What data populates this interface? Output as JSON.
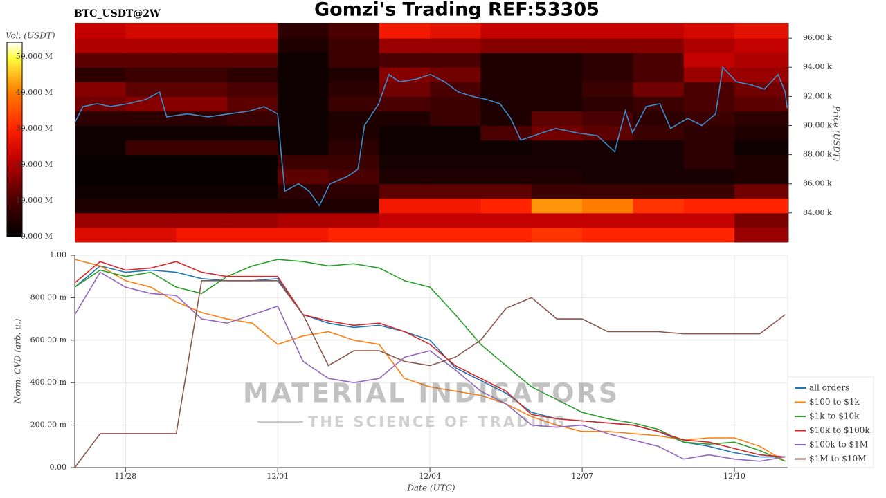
{
  "title": "Gomzi's Trading REF:53305",
  "watermark": {
    "title": "MATERIAL INDICATORS",
    "subtitle": "THE SCIENCE OF TRADING"
  },
  "chart_data": [
    {
      "type": "heatmap",
      "subtitle": "BTC_USDT@2W",
      "ylabel": "Price (USDT)",
      "x_bins": [
        0,
        1,
        2,
        3,
        4,
        5,
        6,
        7,
        8,
        9,
        10,
        11,
        12,
        13,
        14.05
      ],
      "y_bins": [
        82,
        83,
        84,
        85,
        86,
        87,
        88,
        89,
        90,
        91,
        92,
        93,
        94,
        95,
        96,
        97.05
      ],
      "values": [
        [
          25,
          25,
          28,
          28,
          28,
          30,
          30,
          30,
          30,
          32,
          30,
          30,
          30,
          18
        ],
        [
          18,
          18,
          18,
          18,
          20,
          20,
          22,
          22,
          22,
          22,
          22,
          22,
          22,
          15
        ],
        [
          4,
          4,
          4,
          4,
          4,
          4,
          28,
          28,
          30,
          42,
          40,
          32,
          30,
          30
        ],
        [
          2,
          2,
          2,
          2,
          6,
          6,
          12,
          12,
          12,
          8,
          8,
          8,
          8,
          14
        ],
        [
          1,
          1,
          1,
          1,
          12,
          10,
          4,
          4,
          4,
          4,
          3,
          3,
          3,
          4
        ],
        [
          1,
          1,
          1,
          1,
          8,
          8,
          3,
          3,
          3,
          3,
          3,
          3,
          6,
          4
        ],
        [
          2,
          8,
          8,
          8,
          2,
          6,
          2,
          2,
          2,
          3,
          3,
          3,
          6,
          2
        ],
        [
          2,
          2,
          2,
          2,
          2,
          4,
          2,
          2,
          10,
          14,
          12,
          8,
          6,
          4
        ],
        [
          6,
          6,
          6,
          8,
          2,
          4,
          4,
          8,
          4,
          12,
          10,
          6,
          8,
          6
        ],
        [
          14,
          16,
          16,
          12,
          2,
          8,
          10,
          8,
          4,
          4,
          6,
          8,
          10,
          12
        ],
        [
          16,
          12,
          12,
          10,
          2,
          6,
          14,
          10,
          4,
          4,
          8,
          14,
          10,
          14
        ],
        [
          6,
          8,
          8,
          6,
          2,
          4,
          16,
          14,
          4,
          4,
          6,
          10,
          18,
          18
        ],
        [
          12,
          12,
          12,
          12,
          2,
          8,
          10,
          10,
          4,
          4,
          6,
          10,
          22,
          20
        ],
        [
          20,
          20,
          20,
          20,
          4,
          8,
          18,
          18,
          16,
          16,
          16,
          16,
          20,
          22
        ],
        [
          22,
          24,
          24,
          24,
          6,
          10,
          28,
          26,
          22,
          22,
          22,
          22,
          24,
          26
        ]
      ],
      "line": {
        "color": "#3a8fd0",
        "x": [
          0,
          0.16,
          0.44,
          0.71,
          1.05,
          1.4,
          1.67,
          1.81,
          2.22,
          2.63,
          3.04,
          3.45,
          3.73,
          4.0,
          4.07,
          4.14,
          4.41,
          4.62,
          4.82,
          5.03,
          5.37,
          5.58,
          5.71,
          5.99,
          6.19,
          6.4,
          6.74,
          7.01,
          7.29,
          7.56,
          7.84,
          8.11,
          8.38,
          8.59,
          8.79,
          9.21,
          9.48,
          9.89,
          10.3,
          10.64,
          10.85,
          10.99,
          11.26,
          11.53,
          11.74,
          12.08,
          12.36,
          12.63,
          12.77,
          13.04,
          13.32,
          13.59,
          13.86,
          14.0,
          14.04
        ],
        "values": [
          90.2,
          91.3,
          91.5,
          91.3,
          91.5,
          91.8,
          92.3,
          90.6,
          90.8,
          90.6,
          90.8,
          91.0,
          91.3,
          90.8,
          88,
          85.5,
          86,
          85.5,
          84.5,
          86,
          86.5,
          87,
          90,
          91.5,
          93.5,
          93.0,
          93.2,
          93.5,
          93,
          92.3,
          92,
          91.8,
          91.5,
          90.5,
          89,
          89.5,
          89.8,
          89.5,
          89.3,
          88.2,
          91.0,
          89.5,
          91.3,
          91.5,
          89.8,
          90.5,
          90,
          90.8,
          94,
          93.0,
          92.8,
          92.5,
          93.5,
          92.3,
          91.2
        ]
      },
      "xlim": [
        0,
        14.05
      ],
      "ylim": [
        82,
        97.05
      ],
      "yticks": [
        {
          "value": 84,
          "label": "84.00 k"
        },
        {
          "value": 86,
          "label": "86.00 k"
        },
        {
          "value": 88,
          "label": "88.00 k"
        },
        {
          "value": 90,
          "label": "90.00 k"
        },
        {
          "value": 92,
          "label": "92.00 k"
        },
        {
          "value": 94,
          "label": "94.00 k"
        },
        {
          "value": 96,
          "label": "96.00 k"
        }
      ],
      "colorbar": {
        "label": "Vol. (USDT)",
        "lim": [
          0,
          54
        ],
        "ticks": [
          {
            "value": 0,
            "label": "0.000 M"
          },
          {
            "value": 10,
            "label": "10.000 M"
          },
          {
            "value": 20,
            "label": "20.000 M"
          },
          {
            "value": 30,
            "label": "30.000 M"
          },
          {
            "value": 40,
            "label": "40.000 M"
          },
          {
            "value": 50,
            "label": "50.000 M"
          }
        ]
      }
    },
    {
      "type": "line",
      "xlabel": "Date (UTC)",
      "ylabel": "Norm. CVD (arb. u.)",
      "grid": true,
      "legend": "lower right",
      "x": [
        0,
        0.5,
        1,
        1.5,
        2,
        2.5,
        3,
        3.5,
        4,
        4.5,
        5,
        5.5,
        6,
        6.5,
        7,
        7.5,
        8,
        8.5,
        9,
        9.5,
        10,
        10.5,
        11,
        11.5,
        12,
        12.5,
        13,
        13.5,
        14
      ],
      "series": [
        {
          "name": "all orders",
          "color": "#1f77b4",
          "values": [
            0.85,
            0.95,
            0.92,
            0.93,
            0.92,
            0.89,
            0.88,
            0.88,
            0.89,
            0.72,
            0.68,
            0.66,
            0.67,
            0.64,
            0.6,
            0.47,
            0.41,
            0.35,
            0.26,
            0.23,
            0.22,
            0.21,
            0.2,
            0.17,
            0.12,
            0.1,
            0.07,
            0.05,
            0.05
          ]
        },
        {
          "name": "$100 to $1k",
          "color": "#ff7f0e",
          "values": [
            0.98,
            0.95,
            0.88,
            0.85,
            0.78,
            0.73,
            0.7,
            0.68,
            0.58,
            0.62,
            0.64,
            0.6,
            0.58,
            0.42,
            0.38,
            0.36,
            0.34,
            0.3,
            0.24,
            0.2,
            0.17,
            0.17,
            0.16,
            0.15,
            0.13,
            0.14,
            0.14,
            0.1,
            0.03
          ]
        },
        {
          "name": "$1k to $10k",
          "color": "#2ca02c",
          "values": [
            0.85,
            0.93,
            0.9,
            0.92,
            0.85,
            0.82,
            0.9,
            0.95,
            0.98,
            0.97,
            0.95,
            0.96,
            0.94,
            0.88,
            0.85,
            0.72,
            0.58,
            0.48,
            0.38,
            0.32,
            0.26,
            0.23,
            0.21,
            0.18,
            0.12,
            0.11,
            0.12,
            0.08,
            0.03
          ]
        },
        {
          "name": "$10k to $100k",
          "color": "#d62728",
          "values": [
            0.87,
            0.97,
            0.93,
            0.94,
            0.97,
            0.92,
            0.9,
            0.9,
            0.9,
            0.72,
            0.69,
            0.67,
            0.68,
            0.64,
            0.58,
            0.48,
            0.42,
            0.36,
            0.25,
            0.23,
            0.22,
            0.21,
            0.2,
            0.17,
            0.13,
            0.12,
            0.09,
            0.06,
            0.05
          ]
        },
        {
          "name": "$100k to $1M",
          "color": "#9467bd",
          "values": [
            0.72,
            0.92,
            0.85,
            0.82,
            0.81,
            0.7,
            0.68,
            0.72,
            0.76,
            0.5,
            0.42,
            0.4,
            0.42,
            0.52,
            0.55,
            0.46,
            0.36,
            0.3,
            0.2,
            0.19,
            0.2,
            0.16,
            0.13,
            0.1,
            0.04,
            0.06,
            0.04,
            0.03,
            0.05
          ]
        },
        {
          "name": "$1M to $10M",
          "color": "#8c564b",
          "values": [
            0.0,
            0.16,
            0.16,
            0.16,
            0.16,
            0.88,
            0.88,
            0.88,
            0.88,
            0.72,
            0.48,
            0.55,
            0.55,
            0.5,
            0.48,
            0.52,
            0.6,
            0.75,
            0.8,
            0.7,
            0.7,
            0.64,
            0.64,
            0.64,
            0.63,
            0.63,
            0.63,
            0.63,
            0.72
          ]
        }
      ],
      "xlim": [
        0,
        14.05
      ],
      "xticks": [
        {
          "value": 1,
          "label": "11/28"
        },
        {
          "value": 4,
          "label": "12/01"
        },
        {
          "value": 7,
          "label": "12/04"
        },
        {
          "value": 10,
          "label": "12/07"
        },
        {
          "value": 13,
          "label": "12/10"
        }
      ],
      "ylim": [
        0,
        1
      ],
      "yticks": [
        {
          "value": 0,
          "label": "0.00"
        },
        {
          "value": 0.2,
          "label": "200.00 m"
        },
        {
          "value": 0.4,
          "label": "400.00 m"
        },
        {
          "value": 0.6,
          "label": "600.00 m"
        },
        {
          "value": 0.8,
          "label": "800.00 m"
        },
        {
          "value": 1,
          "label": "1.00"
        }
      ]
    }
  ]
}
